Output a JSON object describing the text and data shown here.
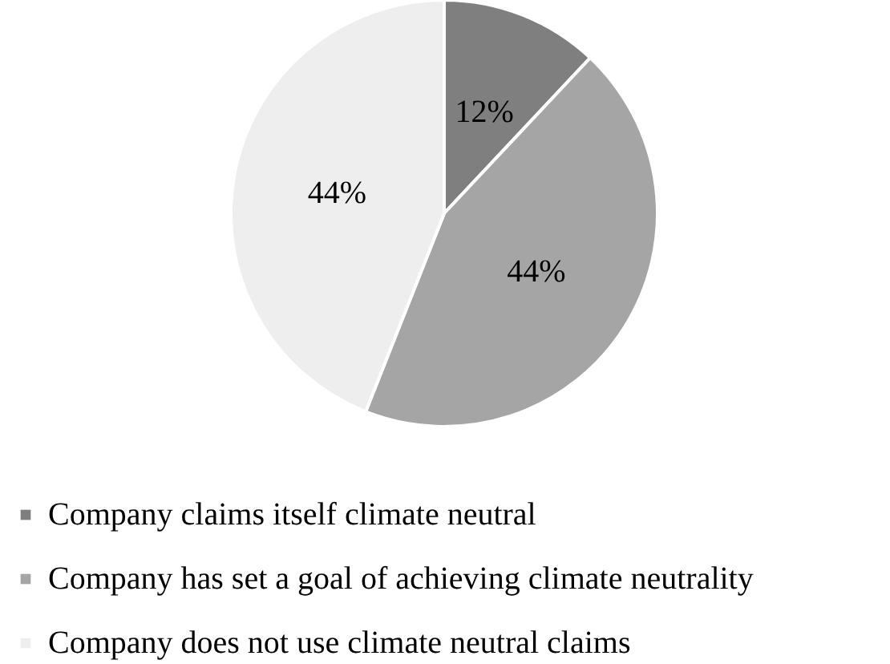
{
  "chart_data": {
    "type": "pie",
    "categories": [
      "Company claims itself climate neutral",
      "Company has set a goal of achieving climate neutrality",
      "Company does not use climate neutral claims"
    ],
    "values": [
      12,
      44,
      44
    ],
    "colors": [
      "#7f7f7f",
      "#a5a5a5",
      "#eeeeee"
    ],
    "value_labels": [
      "12%",
      "44%",
      "44%"
    ],
    "legend": "bottom"
  }
}
